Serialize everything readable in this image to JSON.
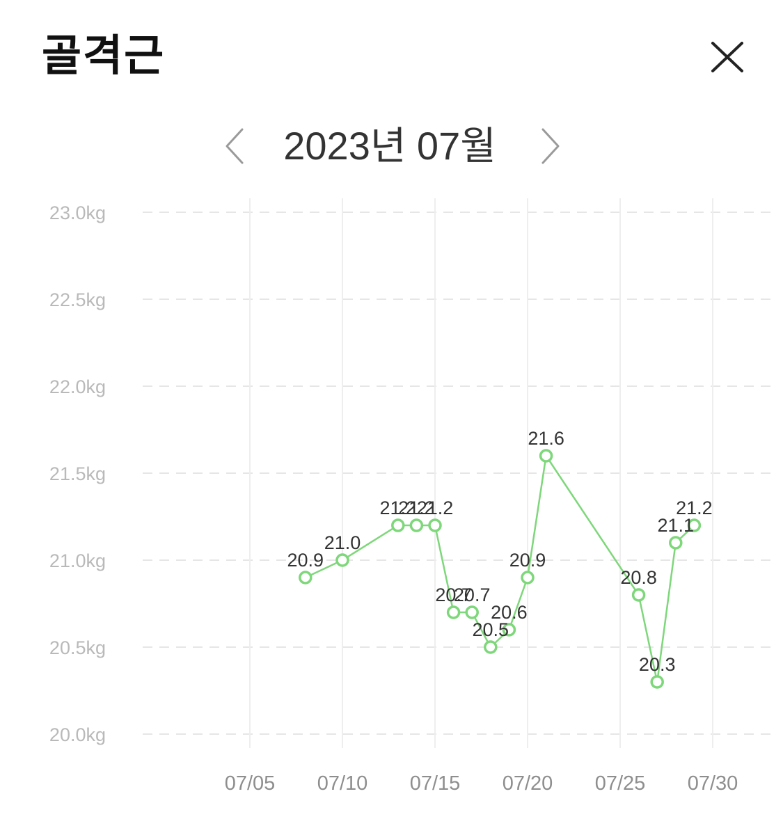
{
  "header": {
    "title": "골격근",
    "close_icon": "close-icon"
  },
  "month_nav": {
    "label": "2023년 07월",
    "prev_icon": "chevron-left-icon",
    "next_icon": "chevron-right-icon"
  },
  "colors": {
    "line": "#7ed77a",
    "grid": "#e6e6e6"
  },
  "chart_data": {
    "type": "line",
    "x": [
      "07/08",
      "07/10",
      "07/13",
      "07/14",
      "07/15",
      "07/16",
      "07/17",
      "07/18",
      "07/19",
      "07/20",
      "07/21",
      "07/26",
      "07/27",
      "07/28",
      "07/29"
    ],
    "values": [
      20.9,
      21.0,
      21.2,
      21.2,
      21.2,
      20.7,
      20.7,
      20.5,
      20.6,
      20.9,
      21.6,
      20.8,
      20.3,
      21.1,
      21.2
    ],
    "value_labels": [
      "20.9",
      "21.0",
      "21.2",
      "21.2",
      "21.2",
      "20.7",
      "20.7",
      "20.5",
      "20.6",
      "20.9",
      "21.6",
      "20.8",
      "20.3",
      "21.1",
      "21.2"
    ],
    "y_ticks": [
      "20.0kg",
      "20.5kg",
      "21.0kg",
      "21.5kg",
      "22.0kg",
      "22.5kg",
      "23.0kg"
    ],
    "x_ticks": [
      "07/05",
      "07/10",
      "07/15",
      "07/20",
      "07/25",
      "07/30"
    ],
    "ylim": [
      20.0,
      23.0
    ],
    "xlim": [
      "07/01",
      "07/31"
    ],
    "grid": true,
    "markers": "hollow circles"
  }
}
